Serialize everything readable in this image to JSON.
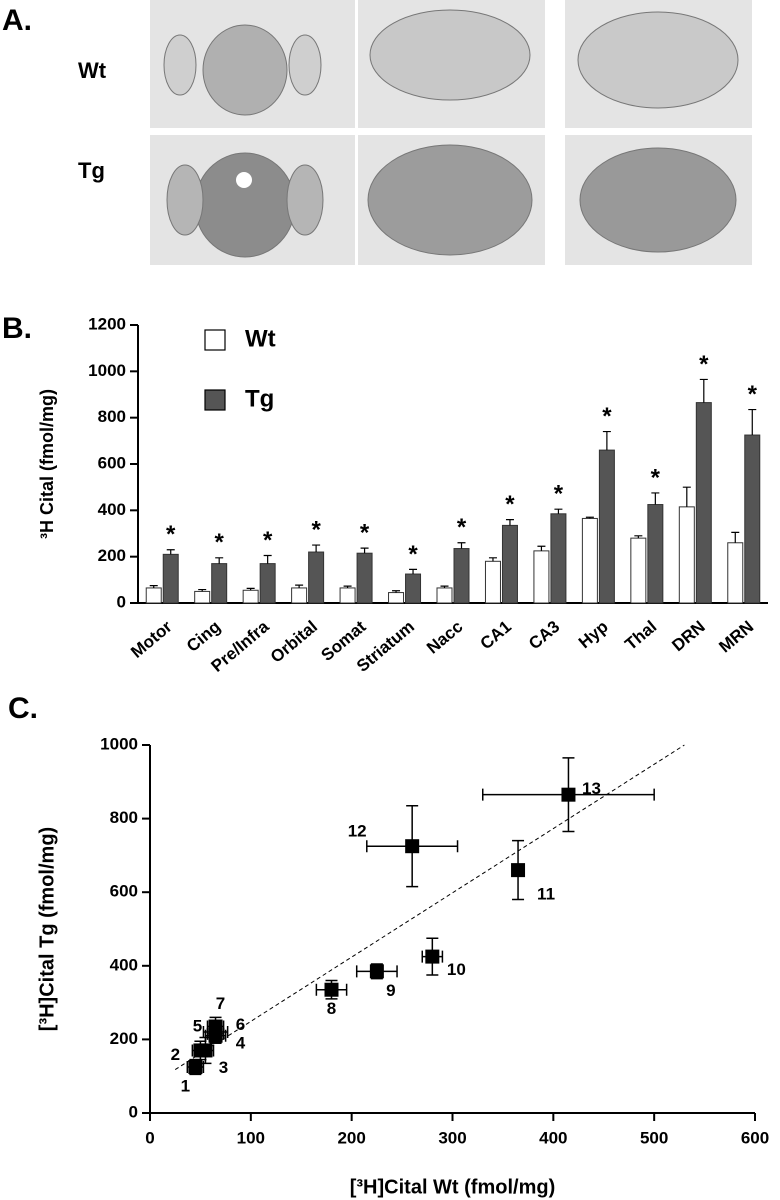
{
  "panel_a": {
    "label": "A.",
    "rows": [
      "Wt",
      "Tg"
    ]
  },
  "chart_data": [
    {
      "type": "bar",
      "panel_label": "B.",
      "y_label": "³H Cital (fmol/mg)",
      "categories": [
        "Motor",
        "Cing",
        "Pre/Infra",
        "Orbital",
        "Somat",
        "Striatum",
        "Nacc",
        "CA1",
        "CA3",
        "Hyp",
        "Thal",
        "DRN",
        "MRN"
      ],
      "series": [
        {
          "name": "Wt",
          "color": "#ffffff",
          "values": [
            65,
            50,
            55,
            65,
            65,
            45,
            65,
            180,
            225,
            365,
            280,
            415,
            260
          ],
          "errors": [
            10,
            8,
            8,
            12,
            8,
            8,
            8,
            15,
            20,
            5,
            10,
            85,
            45
          ]
        },
        {
          "name": "Tg",
          "color": "#555555",
          "values": [
            210,
            170,
            170,
            220,
            215,
            125,
            235,
            335,
            385,
            660,
            425,
            865,
            725
          ],
          "errors": [
            20,
            25,
            35,
            30,
            22,
            20,
            25,
            25,
            20,
            80,
            50,
            100,
            110
          ],
          "significance": [
            "*",
            "*",
            "*",
            "*",
            "*",
            "*",
            "*",
            "*",
            "*",
            "*",
            "*",
            "*",
            "*"
          ]
        }
      ],
      "ylim": [
        0,
        1200
      ],
      "yticks": [
        0,
        200,
        400,
        600,
        800,
        1000,
        1200
      ]
    },
    {
      "type": "scatter",
      "panel_label": "C.",
      "x_label": "[³H]Cital Wt (fmol/mg)",
      "y_label": "[³H]Cital Tg (fmol/mg)",
      "point_labels": [
        "1",
        "2",
        "3",
        "4",
        "5",
        "6",
        "7",
        "8",
        "9",
        "10",
        "11",
        "12",
        "13"
      ],
      "x": [
        45,
        50,
        55,
        65,
        65,
        65,
        65,
        180,
        225,
        280,
        365,
        260,
        415
      ],
      "x_errors": [
        8,
        8,
        8,
        8,
        12,
        10,
        8,
        15,
        20,
        10,
        5,
        45,
        85
      ],
      "y": [
        125,
        170,
        170,
        215,
        220,
        210,
        235,
        335,
        385,
        425,
        660,
        725,
        865
      ],
      "y_errors": [
        20,
        25,
        35,
        22,
        30,
        20,
        25,
        25,
        20,
        50,
        80,
        110,
        100
      ],
      "color": "#000000",
      "fit_line": {
        "x": [
          25,
          530
        ],
        "y": [
          118,
          1000
        ]
      },
      "xlim": [
        0,
        600
      ],
      "xticks": [
        0,
        100,
        200,
        300,
        400,
        500,
        600
      ],
      "ylim": [
        0,
        1000
      ],
      "yticks": [
        0,
        200,
        400,
        600,
        800,
        1000
      ]
    }
  ]
}
